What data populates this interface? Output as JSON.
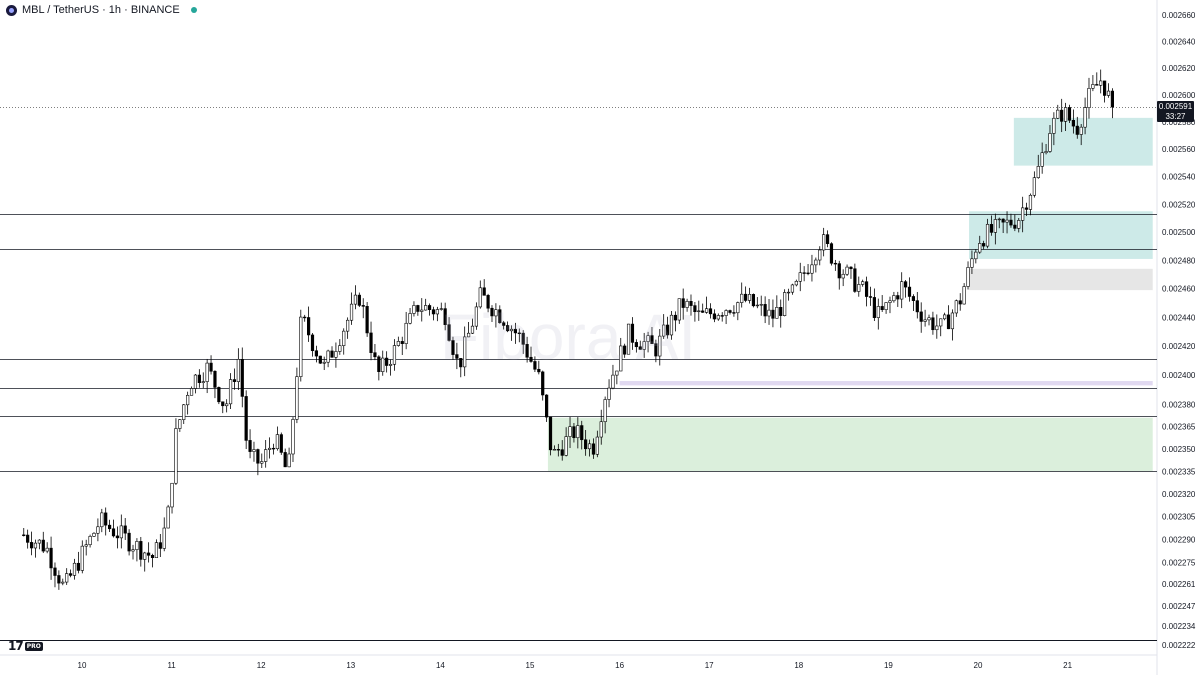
{
  "header": {
    "symbol_title": "MBL / TetherUS · 1h · BINANCE"
  },
  "watermark": "Fibora AI",
  "tv_badge": {
    "mark": "17",
    "pro": "PRO"
  },
  "last_price": {
    "price": "0.002591",
    "countdown": "33:27"
  },
  "colors": {
    "candle_up_body": "#ffffff",
    "candle_down_body": "#000000",
    "wick": "#000000",
    "zone_teal": "#b2dfdb",
    "zone_green": "#c8e6c9",
    "zone_grey": "#d9d9d9",
    "zone_lavender": "#d1c4e9",
    "level_line": "#131722"
  },
  "chart_data": {
    "type": "candlestick",
    "title": "MBL / TetherUS · 1h · BINANCE",
    "x_ticks": [
      "10",
      "11",
      "12",
      "13",
      "14",
      "15",
      "16",
      "17",
      "18",
      "19",
      "20",
      "21"
    ],
    "y_ticks": [
      "0.002660",
      "0.002640",
      "0.002620",
      "0.002600",
      "0.002580",
      "0.002560",
      "0.002540",
      "0.002520",
      "0.002500",
      "0.002480",
      "0.002460",
      "0.002440",
      "0.002420",
      "0.002400",
      "0.002380",
      "0.002365",
      "0.002350",
      "0.002335",
      "0.002320",
      "0.002305",
      "0.002290",
      "0.002275",
      "0.002261",
      "0.002247",
      "0.002234",
      "0.002222"
    ],
    "y_tick_values": [
      0.00266,
      0.00264,
      0.00262,
      0.0026,
      0.00258,
      0.00256,
      0.00254,
      0.00252,
      0.0025,
      0.00248,
      0.00246,
      0.00244,
      0.00242,
      0.0024,
      0.00238,
      0.002365,
      0.00235,
      0.002335,
      0.00232,
      0.002305,
      0.00229,
      0.002275,
      0.002261,
      0.002247,
      0.002234,
      0.002222
    ],
    "y_scale": "log",
    "grid": false,
    "last_price": 0.002591,
    "horizontal_levels": [
      0.002513,
      0.002488,
      0.002411,
      0.002391,
      0.002372,
      0.002335
    ],
    "zones": [
      {
        "color": "teal",
        "x_start": 20.4,
        "x_end": 21.95,
        "high": 0.002583,
        "low": 0.002548
      },
      {
        "color": "teal",
        "x_start": 19.9,
        "x_end": 21.95,
        "high": 0.002515,
        "low": 0.002481
      },
      {
        "color": "grey",
        "x_start": 19.9,
        "x_end": 21.95,
        "high": 0.002474,
        "low": 0.002459
      },
      {
        "color": "lavender",
        "x_start": 16.0,
        "x_end": 21.95,
        "high": 0.002396,
        "low": 0.002393
      },
      {
        "color": "green",
        "x_start": 15.2,
        "x_end": 21.95,
        "high": 0.002371,
        "low": 0.002335
      }
    ],
    "x_start": 9.35,
    "x_end": 21.5,
    "candle_count": 280,
    "close_path": [
      [
        9.35,
        0.002293
      ],
      [
        9.6,
        0.002285
      ],
      [
        9.8,
        0.002258
      ],
      [
        10.0,
        0.00228
      ],
      [
        10.2,
        0.002302
      ],
      [
        10.5,
        0.00229
      ],
      [
        10.8,
        0.002278
      ],
      [
        10.95,
        0.0023
      ],
      [
        11.05,
        0.00236
      ],
      [
        11.2,
        0.002395
      ],
      [
        11.4,
        0.002405
      ],
      [
        11.6,
        0.002378
      ],
      [
        11.75,
        0.002412
      ],
      [
        11.85,
        0.002345
      ],
      [
        12.0,
        0.00234
      ],
      [
        12.15,
        0.002358
      ],
      [
        12.3,
        0.002332
      ],
      [
        12.45,
        0.00244
      ],
      [
        12.7,
        0.002405
      ],
      [
        12.9,
        0.00243
      ],
      [
        13.1,
        0.002455
      ],
      [
        13.3,
        0.0024
      ],
      [
        13.5,
        0.002418
      ],
      [
        13.75,
        0.002448
      ],
      [
        14.05,
        0.002443
      ],
      [
        14.2,
        0.002405
      ],
      [
        14.45,
        0.002455
      ],
      [
        14.7,
        0.00244
      ],
      [
        14.9,
        0.002425
      ],
      [
        15.1,
        0.002398
      ],
      [
        15.25,
        0.002345
      ],
      [
        15.5,
        0.002362
      ],
      [
        15.7,
        0.00235
      ],
      [
        15.85,
        0.00239
      ],
      [
        16.1,
        0.002428
      ],
      [
        16.4,
        0.002418
      ],
      [
        16.7,
        0.00245
      ],
      [
        16.9,
        0.00244
      ],
      [
        17.1,
        0.002445
      ],
      [
        17.4,
        0.002452
      ],
      [
        17.7,
        0.00244
      ],
      [
        17.95,
        0.002458
      ],
      [
        18.25,
        0.002495
      ],
      [
        18.45,
        0.002475
      ],
      [
        18.7,
        0.00246
      ],
      [
        18.9,
        0.00244
      ],
      [
        19.15,
        0.002462
      ],
      [
        19.4,
        0.00244
      ],
      [
        19.6,
        0.002432
      ],
      [
        19.8,
        0.002452
      ],
      [
        20.0,
        0.002495
      ],
      [
        20.2,
        0.002502
      ],
      [
        20.45,
        0.00251
      ],
      [
        20.65,
        0.00254
      ],
      [
        20.8,
        0.002575
      ],
      [
        20.95,
        0.002588
      ],
      [
        21.1,
        0.002575
      ],
      [
        21.25,
        0.0026
      ],
      [
        21.38,
        0.002612
      ],
      [
        21.5,
        0.002591
      ]
    ],
    "reference_low": 0.00225,
    "reference_high": 0.002622
  }
}
